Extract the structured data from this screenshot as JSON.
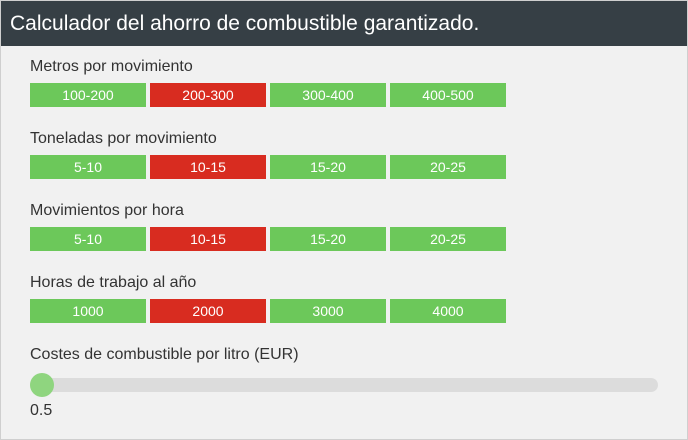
{
  "header": {
    "title": "Calculador del ahorro de combustible garantizado."
  },
  "colors": {
    "header_bg": "#363f45",
    "option_default": "#6cc85a",
    "option_selected": "#d82c20",
    "slider_thumb": "#8fd57f",
    "slider_track": "#dcdcdc"
  },
  "metros": {
    "label": "Metros por movimiento",
    "options": [
      "100-200",
      "200-300",
      "300-400",
      "400-500"
    ],
    "selected": "200-300"
  },
  "toneladas": {
    "label": "Toneladas por movimiento",
    "options": [
      "5-10",
      "10-15",
      "15-20",
      "20-25"
    ],
    "selected": "10-15"
  },
  "movimientos": {
    "label": "Movimientos por hora",
    "options": [
      "5-10",
      "10-15",
      "15-20",
      "20-25"
    ],
    "selected": "10-15"
  },
  "horas": {
    "label": "Horas de trabajo al año",
    "options": [
      "1000",
      "2000",
      "3000",
      "4000"
    ],
    "selected": "2000"
  },
  "costes": {
    "label": "Costes de combustible por litro (EUR)",
    "value": "0.5"
  }
}
